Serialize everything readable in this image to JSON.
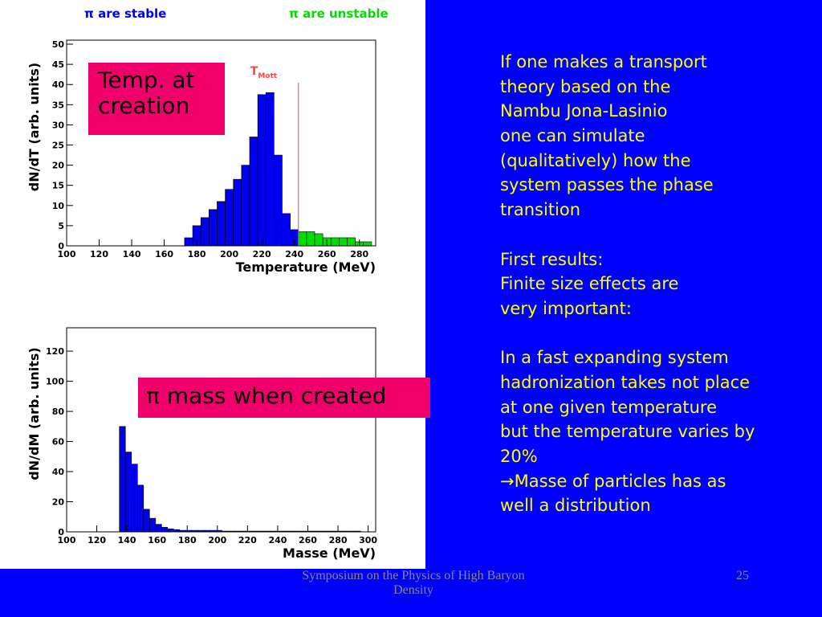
{
  "chart_data": [
    {
      "type": "histogram",
      "xlabel": "Temperature (MeV)",
      "ylabel": "dN/dT (arb. units)",
      "xlim": [
        100,
        290
      ],
      "ylim": [
        0,
        50
      ],
      "xticks": [
        100,
        120,
        140,
        160,
        180,
        200,
        220,
        240,
        260,
        280
      ],
      "yticks": [
        0,
        5,
        10,
        15,
        20,
        25,
        30,
        35,
        40,
        45,
        50
      ],
      "series": [
        {
          "name": "π are stable",
          "color": "#0000ee",
          "bins": [
            172.5,
            177.5,
            182.5,
            187.5,
            192.5,
            197.5,
            202.5,
            207.5,
            212.5,
            217.5,
            222.5,
            227.5,
            232.5,
            237.5,
            242.5
          ],
          "values": [
            2,
            5,
            7,
            9,
            11,
            14,
            16.5,
            20,
            27,
            37.5,
            38,
            22.5,
            8,
            4
          ]
        },
        {
          "name": "π are unstable",
          "color": "#00dd00",
          "bins": [
            242.5,
            247.5,
            252.5,
            257.5,
            262.5,
            267.5,
            272.5,
            277.5,
            282.5,
            287.5
          ],
          "values": [
            3.5,
            3.5,
            3,
            2,
            2,
            2,
            2,
            1,
            1
          ]
        }
      ],
      "marker": {
        "label": "T",
        "sub": "Mott",
        "value": 242.5,
        "color": "#ff4444"
      },
      "note": "Temp.  at\ncreation"
    },
    {
      "type": "histogram",
      "xlabel": "Masse (MeV)",
      "ylabel": "dN/dM (arb. units)",
      "xlim": [
        100,
        305
      ],
      "ylim": [
        0,
        135
      ],
      "xticks": [
        100,
        120,
        140,
        160,
        180,
        200,
        220,
        240,
        260,
        280,
        300
      ],
      "yticks": [
        0,
        20,
        40,
        60,
        80,
        100,
        120
      ],
      "color": "#0000ee",
      "bins": [
        135,
        139,
        143,
        147,
        151,
        155,
        159,
        163,
        167,
        171,
        175,
        179,
        183,
        187,
        191,
        195,
        199,
        203,
        207,
        211,
        215,
        219,
        223,
        227,
        231,
        235,
        239,
        243,
        247,
        251,
        255,
        259,
        263,
        267,
        271,
        275,
        279,
        283,
        287,
        291,
        295
      ],
      "values": [
        70,
        53,
        45,
        31,
        15,
        9,
        5,
        3,
        2,
        1.5,
        1,
        1,
        1,
        1,
        1,
        1,
        1,
        0.5,
        0.5,
        0.5,
        0.5,
        0.5,
        0.5,
        0.5,
        0.5,
        0.5,
        0.5,
        0.5,
        0.5,
        0.5,
        0.5,
        0.5,
        0.5,
        0.5,
        0.5,
        0.5,
        0.5,
        0.5,
        0.5,
        0.5
      ],
      "note": "π mass  when created"
    }
  ],
  "body": [
    "If one makes a transport",
    "theory based on the",
    "Nambu Jona-Lasinio",
    "one can simulate",
    "(qualitatively) how the",
    "system passes the phase",
    "transition",
    "",
    "First results:",
    "Finite size effects are",
    "very important:",
    "",
    "In a fast expanding system",
    "hadronization takes not place",
    "at one given temperature",
    "but the temperature varies by",
    "20%",
    "→Masse of particles has as",
    "well a distribution"
  ],
  "footer": {
    "text": "Symposium on the Physics of High Baryon Density",
    "page": "25"
  }
}
